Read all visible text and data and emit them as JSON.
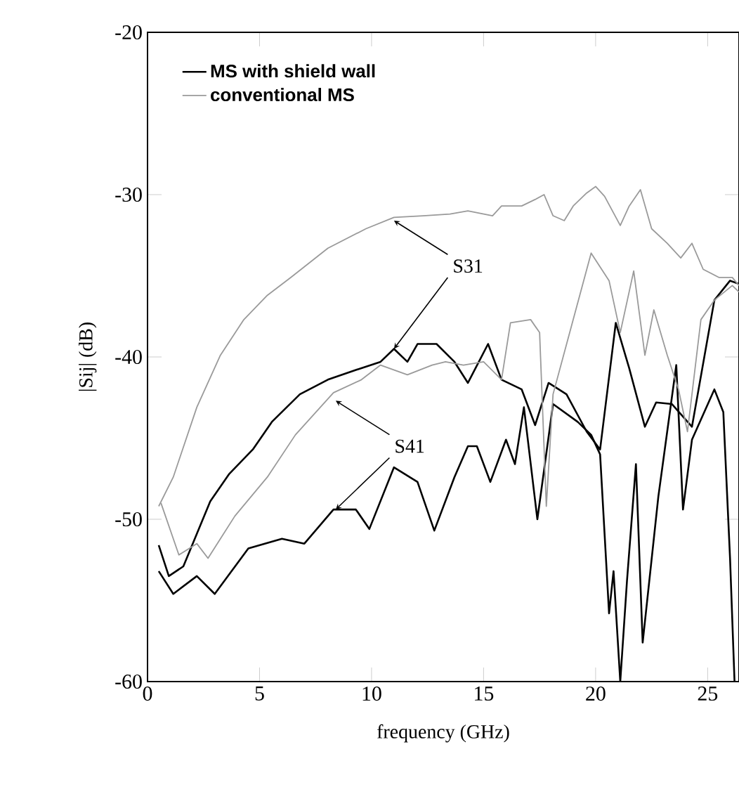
{
  "chart_data": {
    "type": "line",
    "xlabel": "frequency (GHz)",
    "ylabel": "|Sij| (dB)",
    "xlim": [
      0,
      26.4
    ],
    "ylim": [
      -60,
      -20
    ],
    "xticks": [
      0,
      5,
      10,
      15,
      20,
      25
    ],
    "yticks": [
      -60,
      -50,
      -40,
      -30,
      -20
    ],
    "legend": "top left",
    "annotations": [
      {
        "text": "S31",
        "x": 11,
        "y": -31.6
      },
      {
        "text": "S41",
        "x": 8.4,
        "y": -42.7
      }
    ],
    "series": [
      {
        "name": "MS with shield wall",
        "color": "#000000",
        "x": [
          0.5,
          0.95,
          1.6,
          2.2,
          2.8,
          3.65,
          4.7,
          5.55,
          6.8,
          8.05,
          9.3,
          10.4,
          11,
          11.6,
          12.05,
          12.9,
          13.7,
          14.3,
          15.2,
          15.8,
          16.7,
          17.3,
          17.9,
          18.7,
          19.6,
          20.2,
          20.9,
          21.5,
          22.2,
          22.7,
          23.4,
          24.3,
          25.3,
          26,
          26.4
        ],
        "values": [
          -51.6,
          -53.5,
          -52.9,
          -50.9,
          -48.9,
          -47.2,
          -45.7,
          -44.0,
          -42.3,
          -41.4,
          -40.8,
          -40.3,
          -39.5,
          -40.3,
          -39.2,
          -39.2,
          -40.3,
          -41.6,
          -39.2,
          -41.4,
          -42.0,
          -44.2,
          -41.6,
          -42.3,
          -44.6,
          -45.7,
          -37.9,
          -40.7,
          -44.3,
          -42.8,
          -42.9,
          -44.3,
          -36.5,
          -35.3,
          -35.5
        ]
      },
      {
        "color": "#000000",
        "x": [
          0.5,
          1.15,
          2.2,
          3.0,
          4.5,
          6,
          7,
          8.3,
          9.3,
          9.9,
          11,
          12.05,
          12.8,
          13.7,
          14.3,
          14.7,
          15.3,
          16,
          16.4,
          16.8,
          17.4,
          18.1,
          19.2,
          19.8,
          20.2,
          20.6,
          20.8,
          21.1,
          21.4,
          21.8,
          22.1,
          22.8,
          23.6,
          23.9,
          24.3,
          25.3,
          25.7,
          26,
          26.2
        ],
        "values": [
          -53.2,
          -54.6,
          -53.5,
          -54.6,
          -51.8,
          -51.2,
          -51.5,
          -49.4,
          -49.4,
          -50.6,
          -46.8,
          -47.7,
          -50.7,
          -47.4,
          -45.5,
          -45.5,
          -47.7,
          -45.1,
          -46.6,
          -43.1,
          -50.0,
          -42.9,
          -44.0,
          -44.8,
          -46.0,
          -55.8,
          -53.2,
          -60,
          -53.8,
          -46.6,
          -57.6,
          -48.6,
          -40.5,
          -49.4,
          -45.1,
          -42.0,
          -43.4,
          -52.4,
          -60
        ]
      },
      {
        "name": "conventional MS",
        "color": "#9a9a9a",
        "x": [
          0.5,
          1.15,
          2.2,
          3.25,
          4.3,
          5.35,
          6.4,
          8.05,
          9.75,
          11,
          12.3,
          13.5,
          14.3,
          15.4,
          15.8,
          16.7,
          17.3,
          17.7,
          18.1,
          18.6,
          19,
          19.6,
          20,
          20.4,
          21.1,
          21.5,
          22,
          22.5,
          23.2,
          23.8,
          24.3,
          24.8,
          25.5,
          26.1,
          26.4
        ],
        "values": [
          -49.2,
          -47.4,
          -43.1,
          -39.9,
          -37.7,
          -36.2,
          -35.1,
          -33.3,
          -32.1,
          -31.4,
          -31.3,
          -31.2,
          -31.0,
          -31.3,
          -30.7,
          -30.7,
          -30.3,
          -30.0,
          -31.3,
          -31.6,
          -30.7,
          -29.9,
          -29.5,
          -30.1,
          -31.9,
          -30.7,
          -29.7,
          -32.1,
          -33.0,
          -33.9,
          -33.0,
          -34.6,
          -35.1,
          -35.1,
          -35.6
        ]
      },
      {
        "color": "#9a9a9a",
        "x": [
          0.6,
          1.4,
          2.2,
          2.7,
          3.9,
          5.35,
          6.6,
          8.3,
          9.55,
          10.4,
          11.6,
          12.7,
          13.3,
          14.1,
          15,
          15.8,
          16.2,
          17.1,
          17.5,
          17.8,
          18.1,
          19.8,
          20.6,
          21.1,
          21.7,
          22.2,
          22.6,
          23.2,
          23.7,
          24.1,
          24.7,
          25.3,
          26.1,
          26.4
        ],
        "values": [
          -49.0,
          -52.2,
          -51.5,
          -52.4,
          -49.8,
          -47.4,
          -44.8,
          -42.2,
          -41.4,
          -40.5,
          -41.1,
          -40.5,
          -40.3,
          -40.5,
          -40.3,
          -41.4,
          -37.9,
          -37.7,
          -38.5,
          -49.2,
          -42.3,
          -33.6,
          -35.3,
          -38.5,
          -34.7,
          -39.9,
          -37.1,
          -39.9,
          -42.0,
          -44.6,
          -37.7,
          -36.5,
          -35.6,
          -36.0
        ]
      }
    ]
  }
}
